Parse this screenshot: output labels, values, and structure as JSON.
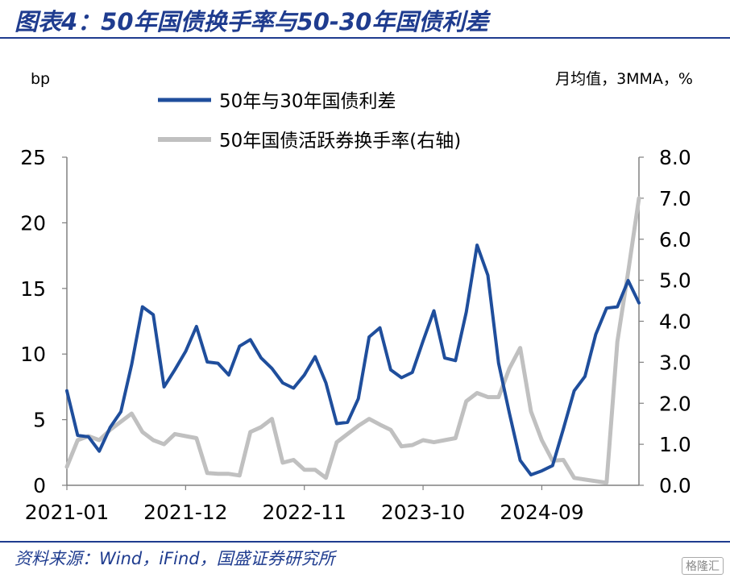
{
  "header": {
    "title": "图表4：50年国债换手率与50-30年国债利差"
  },
  "footer": {
    "source": "资料来源：Wind，iFind，国盛证券研究所",
    "watermark": "格隆汇"
  },
  "colors": {
    "accent": "#1f3c8f",
    "series_spread": "#1f4e9c",
    "series_turnover": "#c0c0c0"
  },
  "chart_data": {
    "type": "line",
    "left_axis_unit": "bp",
    "right_axis_unit": "月均值，3MMA，%",
    "ylim_left": [
      0,
      25
    ],
    "ylim_right": [
      0,
      8
    ],
    "yticks_left": [
      "0",
      "5",
      "10",
      "15",
      "20",
      "25"
    ],
    "yticks_right": [
      "0.0",
      "1.0",
      "2.0",
      "3.0",
      "4.0",
      "5.0",
      "6.0",
      "7.0",
      "8.0"
    ],
    "x_tick_labels": [
      "2021-01",
      "2021-12",
      "2022-11",
      "2023-10",
      "2024-09"
    ],
    "x_tick_indices": [
      0,
      11,
      22,
      33,
      44
    ],
    "grid": false,
    "legend_position": "top-center",
    "series": [
      {
        "name": "50年与30年国债利差",
        "axis": "left",
        "values": [
          7.2,
          3.8,
          3.7,
          2.6,
          4.4,
          5.6,
          9.2,
          13.6,
          13.0,
          7.5,
          8.8,
          10.2,
          12.1,
          9.4,
          9.3,
          8.4,
          10.6,
          11.1,
          9.7,
          8.9,
          7.8,
          7.4,
          8.4,
          9.8,
          7.8,
          4.7,
          4.8,
          6.6,
          11.3,
          12.0,
          8.8,
          8.2,
          8.6,
          11.0,
          13.3,
          9.7,
          9.5,
          13.2,
          18.3,
          16.0,
          9.3,
          5.5,
          1.9,
          0.8,
          1.1,
          1.5,
          4.3,
          7.2,
          8.3,
          11.5,
          13.5,
          13.6,
          15.6,
          13.9
        ]
      },
      {
        "name": "50年国债活跃券换手率(右轴)",
        "axis": "right",
        "values": [
          0.45,
          1.1,
          1.2,
          1.1,
          1.35,
          1.55,
          1.75,
          1.3,
          1.1,
          1.0,
          1.25,
          1.2,
          1.15,
          0.3,
          0.28,
          0.28,
          0.24,
          1.3,
          1.42,
          1.62,
          0.55,
          0.62,
          0.38,
          0.38,
          0.18,
          1.05,
          1.25,
          1.45,
          1.62,
          1.48,
          1.35,
          0.95,
          0.98,
          1.1,
          1.05,
          1.1,
          1.15,
          2.05,
          2.25,
          2.15,
          2.15,
          2.85,
          3.35,
          1.8,
          1.1,
          0.6,
          0.62,
          0.18,
          0.14,
          0.1,
          0.06,
          3.5,
          5.2,
          7.0
        ]
      }
    ]
  }
}
